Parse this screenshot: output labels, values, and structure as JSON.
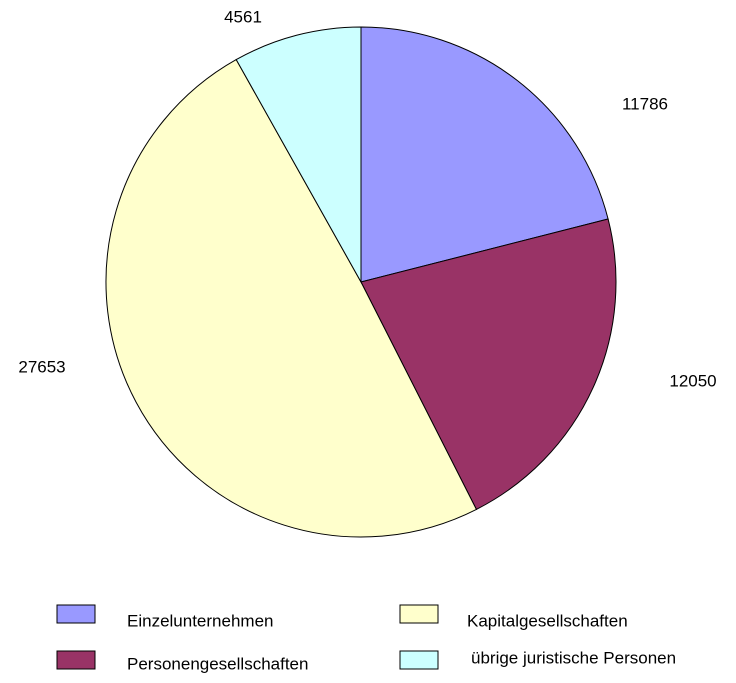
{
  "chart_data": {
    "type": "pie",
    "categories": [
      "Einzelunternehmen",
      "Personengesellschaften",
      "Kapitalgesellschaften",
      "übrige juristische Personen"
    ],
    "values": [
      11786,
      12050,
      27653,
      4561
    ],
    "colors": [
      "#9999ff",
      "#993366",
      "#ffffcc",
      "#ccffff"
    ]
  }
}
